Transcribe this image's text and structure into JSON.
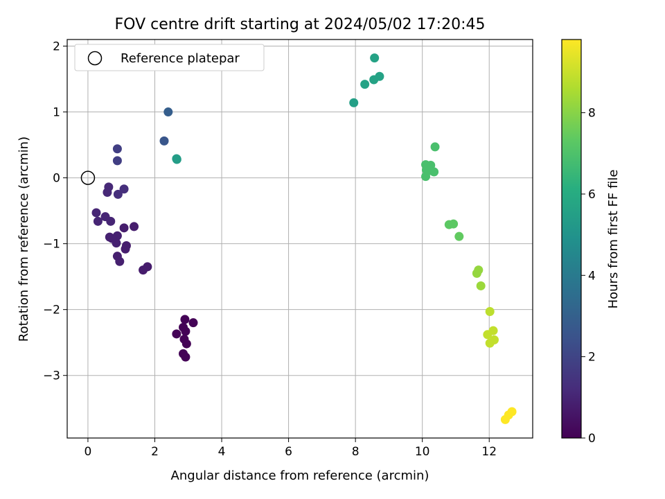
{
  "chart_data": {
    "type": "scatter",
    "title": "FOV centre drift starting at 2024/05/02 17:20:45",
    "xlabel": "Angular distance from reference (arcmin)",
    "ylabel": "Rotation from reference (arcmin)",
    "xlim": [
      -0.62,
      13.3
    ],
    "ylim": [
      -3.95,
      2.1
    ],
    "xticks": [
      0,
      2,
      4,
      6,
      8,
      10,
      12
    ],
    "yticks": [
      -3,
      -2,
      -1,
      0,
      1,
      2
    ],
    "grid": true,
    "legend": {
      "placement": "top-left",
      "entries": [
        "Reference platepar"
      ]
    },
    "reference_point": {
      "x": 0,
      "y": 0
    },
    "colorbar": {
      "label": "Hours from first FF file",
      "range": [
        0,
        9.8
      ],
      "ticks": [
        0,
        2,
        4,
        6,
        8
      ],
      "colormap": "viridis"
    },
    "points": [
      {
        "x": 2.9,
        "y": -2.15,
        "hours": 0.05
      },
      {
        "x": 3.15,
        "y": -2.2,
        "hours": 0.05
      },
      {
        "x": 2.85,
        "y": -2.27,
        "hours": 0.05
      },
      {
        "x": 2.92,
        "y": -2.33,
        "hours": 0.05
      },
      {
        "x": 2.65,
        "y": -2.37,
        "hours": 0.05
      },
      {
        "x": 2.88,
        "y": -2.45,
        "hours": 0.05
      },
      {
        "x": 2.95,
        "y": -2.52,
        "hours": 0.05
      },
      {
        "x": 2.85,
        "y": -2.67,
        "hours": 0.05
      },
      {
        "x": 2.92,
        "y": -2.72,
        "hours": 0.05
      },
      {
        "x": 1.65,
        "y": -1.4,
        "hours": 0.75
      },
      {
        "x": 1.78,
        "y": -1.35,
        "hours": 0.75
      },
      {
        "x": 1.38,
        "y": -0.74,
        "hours": 0.8
      },
      {
        "x": 1.08,
        "y": -0.76,
        "hours": 0.8
      },
      {
        "x": 1.15,
        "y": -1.03,
        "hours": 0.8
      },
      {
        "x": 1.12,
        "y": -1.08,
        "hours": 0.8
      },
      {
        "x": 0.95,
        "y": -1.27,
        "hours": 0.85
      },
      {
        "x": 0.88,
        "y": -1.19,
        "hours": 0.85
      },
      {
        "x": 0.85,
        "y": -0.99,
        "hours": 0.9
      },
      {
        "x": 0.88,
        "y": -0.88,
        "hours": 0.9
      },
      {
        "x": 0.72,
        "y": -0.92,
        "hours": 0.9
      },
      {
        "x": 0.65,
        "y": -0.9,
        "hours": 0.9
      },
      {
        "x": 0.68,
        "y": -0.66,
        "hours": 1.0
      },
      {
        "x": 0.52,
        "y": -0.59,
        "hours": 1.0
      },
      {
        "x": 0.25,
        "y": -0.53,
        "hours": 1.0
      },
      {
        "x": 0.3,
        "y": -0.66,
        "hours": 1.0
      },
      {
        "x": 0.58,
        "y": -0.22,
        "hours": 1.1
      },
      {
        "x": 0.62,
        "y": -0.14,
        "hours": 1.1
      },
      {
        "x": 0.9,
        "y": -0.25,
        "hours": 1.3
      },
      {
        "x": 1.08,
        "y": -0.17,
        "hours": 1.3
      },
      {
        "x": 0.88,
        "y": 0.26,
        "hours": 1.8
      },
      {
        "x": 0.88,
        "y": 0.44,
        "hours": 1.8
      },
      {
        "x": 2.28,
        "y": 0.56,
        "hours": 2.6
      },
      {
        "x": 2.4,
        "y": 1.0,
        "hours": 2.9
      },
      {
        "x": 2.65,
        "y": 0.29,
        "hours": 5.4
      },
      {
        "x": 2.66,
        "y": 0.28,
        "hours": 5.4
      },
      {
        "x": 7.95,
        "y": 1.14,
        "hours": 5.5
      },
      {
        "x": 8.28,
        "y": 1.42,
        "hours": 5.6
      },
      {
        "x": 8.55,
        "y": 1.49,
        "hours": 5.6
      },
      {
        "x": 8.72,
        "y": 1.54,
        "hours": 5.6
      },
      {
        "x": 8.57,
        "y": 1.82,
        "hours": 5.6
      },
      {
        "x": 10.38,
        "y": 0.47,
        "hours": 6.9
      },
      {
        "x": 10.1,
        "y": 0.2,
        "hours": 6.9
      },
      {
        "x": 10.25,
        "y": 0.19,
        "hours": 6.9
      },
      {
        "x": 10.12,
        "y": 0.12,
        "hours": 6.9
      },
      {
        "x": 10.22,
        "y": 0.11,
        "hours": 6.9
      },
      {
        "x": 10.35,
        "y": 0.09,
        "hours": 6.9
      },
      {
        "x": 10.1,
        "y": 0.02,
        "hours": 6.9
      },
      {
        "x": 10.8,
        "y": -0.71,
        "hours": 7.3
      },
      {
        "x": 10.93,
        "y": -0.7,
        "hours": 7.3
      },
      {
        "x": 11.1,
        "y": -0.89,
        "hours": 7.4
      },
      {
        "x": 11.68,
        "y": -1.4,
        "hours": 8.2
      },
      {
        "x": 11.63,
        "y": -1.45,
        "hours": 8.2
      },
      {
        "x": 11.75,
        "y": -1.64,
        "hours": 8.3
      },
      {
        "x": 12.02,
        "y": -2.03,
        "hours": 8.8
      },
      {
        "x": 12.12,
        "y": -2.32,
        "hours": 8.9
      },
      {
        "x": 11.95,
        "y": -2.38,
        "hours": 8.9
      },
      {
        "x": 12.15,
        "y": -2.46,
        "hours": 8.9
      },
      {
        "x": 12.02,
        "y": -2.51,
        "hours": 8.9
      },
      {
        "x": 12.68,
        "y": -3.55,
        "hours": 9.8
      },
      {
        "x": 12.58,
        "y": -3.6,
        "hours": 9.8
      },
      {
        "x": 12.48,
        "y": -3.67,
        "hours": 9.8
      }
    ]
  }
}
